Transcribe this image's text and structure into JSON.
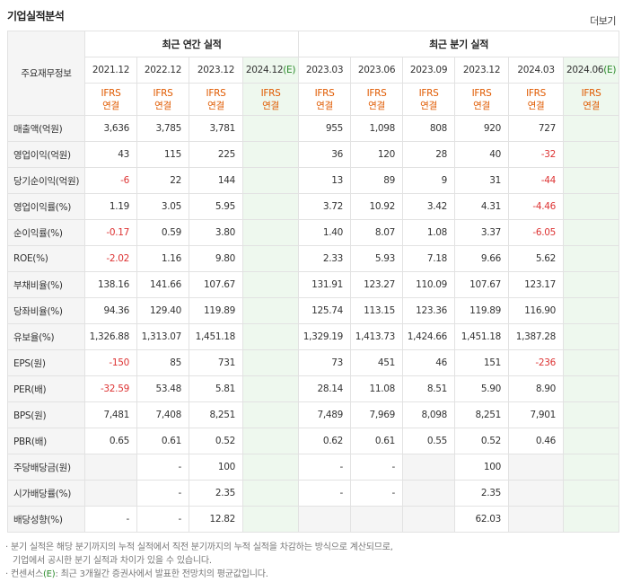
{
  "header": {
    "title": "기업실적분석",
    "more": "더보기"
  },
  "table": {
    "corner": "주요재무정보",
    "groups": {
      "annual": "최근 연간 실적",
      "quarter": "최근 분기 실적"
    },
    "periods": [
      "2021.12",
      "2022.12",
      "2023.12",
      "2024.12",
      "2023.03",
      "2023.06",
      "2023.09",
      "2023.12",
      "2024.03",
      "2024.06"
    ],
    "estimate_marker": "(E)",
    "ifrs_top": "IFRS",
    "ifrs_bottom": "연결",
    "rows": [
      {
        "label": "매출액(억원)",
        "values": [
          "3,636",
          "3,785",
          "3,781",
          "",
          "955",
          "1,098",
          "808",
          "920",
          "727",
          ""
        ]
      },
      {
        "label": "영업이익(억원)",
        "values": [
          "43",
          "115",
          "225",
          "",
          "36",
          "120",
          "28",
          "40",
          "-32",
          ""
        ]
      },
      {
        "label": "당기순이익(억원)",
        "values": [
          "-6",
          "22",
          "144",
          "",
          "13",
          "89",
          "9",
          "31",
          "-44",
          ""
        ]
      },
      {
        "label": "영업이익률(%)",
        "values": [
          "1.19",
          "3.05",
          "5.95",
          "",
          "3.72",
          "10.92",
          "3.42",
          "4.31",
          "-4.46",
          ""
        ]
      },
      {
        "label": "순이익률(%)",
        "values": [
          "-0.17",
          "0.59",
          "3.80",
          "",
          "1.40",
          "8.07",
          "1.08",
          "3.37",
          "-6.05",
          ""
        ]
      },
      {
        "label": "ROE(%)",
        "values": [
          "-2.02",
          "1.16",
          "9.80",
          "",
          "2.33",
          "5.93",
          "7.18",
          "9.66",
          "5.62",
          ""
        ]
      },
      {
        "label": "부채비율(%)",
        "values": [
          "138.16",
          "141.66",
          "107.67",
          "",
          "131.91",
          "123.27",
          "110.09",
          "107.67",
          "123.17",
          ""
        ]
      },
      {
        "label": "당좌비율(%)",
        "values": [
          "94.36",
          "129.40",
          "119.89",
          "",
          "125.74",
          "113.15",
          "123.36",
          "119.89",
          "116.90",
          ""
        ]
      },
      {
        "label": "유보율(%)",
        "values": [
          "1,326.88",
          "1,313.07",
          "1,451.18",
          "",
          "1,329.19",
          "1,413.73",
          "1,424.66",
          "1,451.18",
          "1,387.28",
          ""
        ]
      },
      {
        "label": "EPS(원)",
        "values": [
          "-150",
          "85",
          "731",
          "",
          "73",
          "451",
          "46",
          "151",
          "-236",
          ""
        ]
      },
      {
        "label": "PER(배)",
        "values": [
          "-32.59",
          "53.48",
          "5.81",
          "",
          "28.14",
          "11.08",
          "8.51",
          "5.90",
          "8.90",
          ""
        ]
      },
      {
        "label": "BPS(원)",
        "values": [
          "7,481",
          "7,408",
          "8,251",
          "",
          "7,489",
          "7,969",
          "8,098",
          "8,251",
          "7,901",
          ""
        ]
      },
      {
        "label": "PBR(배)",
        "values": [
          "0.65",
          "0.61",
          "0.52",
          "",
          "0.62",
          "0.61",
          "0.55",
          "0.52",
          "0.46",
          ""
        ]
      },
      {
        "label": "주당배당금(원)",
        "values": [
          "",
          "-",
          "100",
          "",
          "-",
          "-",
          "",
          "100",
          "",
          ""
        ]
      },
      {
        "label": "시가배당률(%)",
        "values": [
          "",
          "-",
          "2.35",
          "",
          "-",
          "-",
          "",
          "2.35",
          "",
          ""
        ]
      },
      {
        "label": "배당성향(%)",
        "values": [
          "-",
          "-",
          "12.82",
          "",
          "",
          "",
          "",
          "62.03",
          "",
          ""
        ]
      }
    ]
  },
  "notes": {
    "line1": "· 분기 실적은 해당 분기까지의 누적 실적에서 직전 분기까지의 누적 실적을 차감하는 방식으로 계산되므로,",
    "line2": "기업에서 공시한 분기 실적과 차이가 있을 수 있습니다.",
    "line3_prefix": "· 컨센서스",
    "line3_marker": "(E)",
    "line3_suffix": ": 최근 3개월간 증권사에서 발표한 전망치의 평균값입니다."
  }
}
